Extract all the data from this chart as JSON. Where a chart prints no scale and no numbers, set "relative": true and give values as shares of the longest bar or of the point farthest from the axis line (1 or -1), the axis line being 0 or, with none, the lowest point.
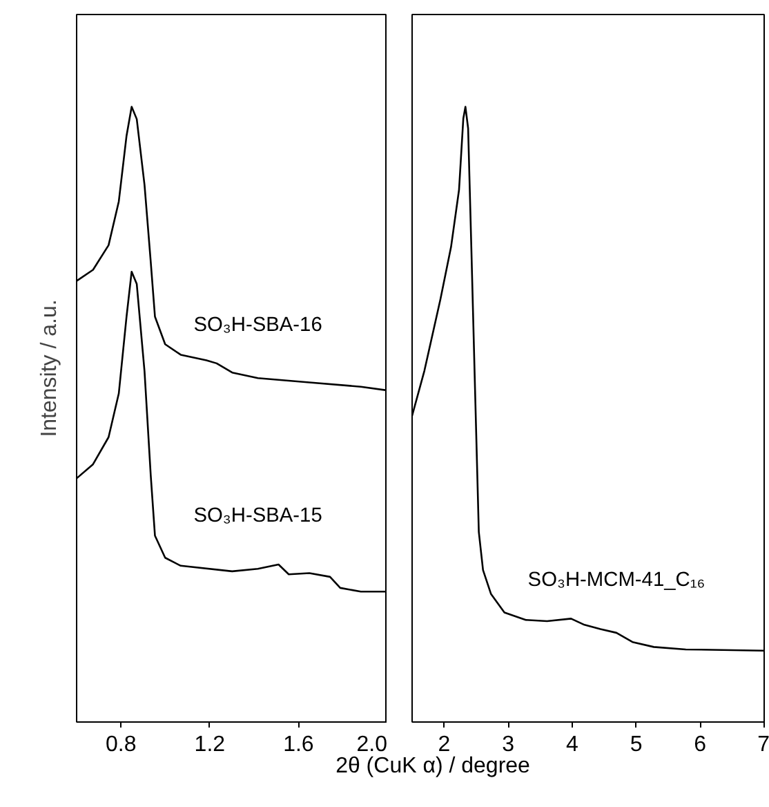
{
  "chart_data": [
    {
      "type": "line",
      "relative": true,
      "ylabel": "Intensity / a.u.",
      "xlabel": "2θ (CuK α) / degree",
      "xlim": [
        0.6,
        2.0
      ],
      "xticks": [
        {
          "value": 0.8,
          "label": "0.8"
        },
        {
          "value": 1.2,
          "label": "1.2"
        },
        {
          "value": 1.6,
          "label": "1.6"
        },
        {
          "value": 2.0,
          "label": "2.0"
        }
      ],
      "grid": false,
      "series": [
        {
          "name": "SO₃H-SBA-16",
          "color": "#000000",
          "x": [
            0.6,
            0.674,
            0.744,
            0.79,
            0.825,
            0.848,
            0.871,
            0.906,
            0.934,
            0.953,
            0.999,
            1.069,
            1.185,
            1.231,
            1.301,
            1.417,
            1.649,
            1.881,
            2.0
          ],
          "values": [
            0.717,
            0.735,
            0.775,
            0.846,
            0.953,
            1.0,
            0.98,
            0.873,
            0.748,
            0.659,
            0.614,
            0.597,
            0.588,
            0.583,
            0.568,
            0.559,
            0.552,
            0.545,
            0.539
          ]
        },
        {
          "name": "SO₃H-SBA-15",
          "color": "#000000",
          "x": [
            0.6,
            0.674,
            0.744,
            0.79,
            0.825,
            0.848,
            0.871,
            0.906,
            0.934,
            0.953,
            0.999,
            1.069,
            1.301,
            1.417,
            1.51,
            1.556,
            1.649,
            1.742,
            1.788,
            1.881,
            2.0
          ],
          "values": [
            0.396,
            0.419,
            0.463,
            0.534,
            0.659,
            0.732,
            0.712,
            0.57,
            0.401,
            0.303,
            0.267,
            0.254,
            0.245,
            0.249,
            0.256,
            0.24,
            0.242,
            0.236,
            0.218,
            0.212,
            0.212
          ]
        }
      ]
    },
    {
      "type": "line",
      "relative": true,
      "xlim": [
        1.5,
        7
      ],
      "xticks": [
        2,
        3,
        4,
        5,
        6,
        7
      ],
      "grid": false,
      "series": [
        {
          "name": "SO₃H-MCM-41_C₁₆",
          "color": "#000000",
          "x": [
            1.5,
            1.692,
            1.942,
            2.108,
            2.233,
            2.3,
            2.333,
            2.375,
            2.425,
            2.483,
            2.542,
            2.608,
            2.733,
            2.942,
            3.275,
            3.608,
            3.983,
            4.192,
            4.442,
            4.692,
            4.942,
            5.275,
            5.775,
            7.0
          ],
          "values": [
            0.498,
            0.571,
            0.687,
            0.772,
            0.865,
            0.981,
            1.0,
            0.965,
            0.772,
            0.541,
            0.309,
            0.247,
            0.208,
            0.178,
            0.166,
            0.164,
            0.168,
            0.158,
            0.151,
            0.145,
            0.13,
            0.122,
            0.118,
            0.116
          ]
        }
      ]
    }
  ]
}
